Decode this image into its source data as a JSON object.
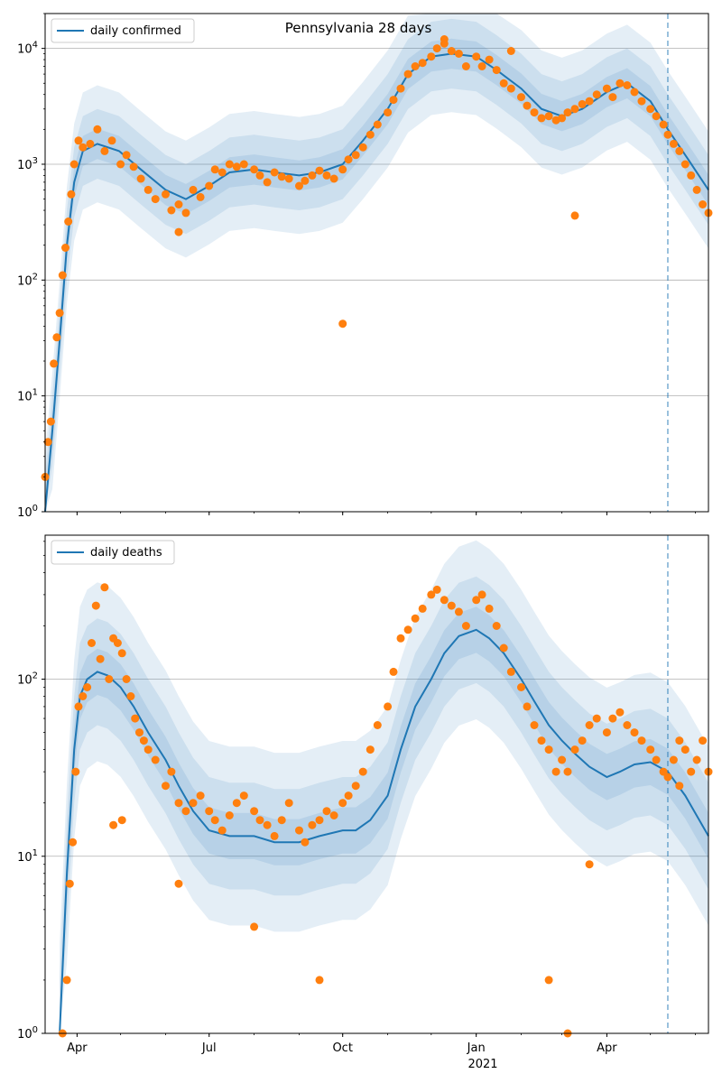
{
  "title": "Pennsylvania 28 days",
  "colors": {
    "model_line": "#1f77b4",
    "observed_points": "#ff7f0e",
    "band": "#1f77b4",
    "forecast_start_line": "#1f77b4",
    "grid": "#b0b0b0"
  },
  "x_axis": {
    "tick_labels": [
      "Apr",
      "Jul",
      "Oct",
      "Jan",
      "Apr"
    ],
    "tick_dates": [
      "2020-04-01",
      "2020-07-01",
      "2020-10-01",
      "2021-01-01",
      "2021-04-01"
    ],
    "year_label": "2021",
    "xlim": [
      "2020-03-10",
      "2021-06-10"
    ],
    "forecast_start": "2021-05-13"
  },
  "chart_data": [
    {
      "type": "scatter",
      "panel": "top",
      "legend": "daily confirmed",
      "legend_position": "upper left",
      "y_scale": "log",
      "ylim": [
        1,
        20000
      ],
      "y_tick_labels": [
        "10^0",
        "10^1",
        "10^2",
        "10^3",
        "10^4"
      ],
      "y_tick_values": [
        1,
        10,
        100,
        1000,
        10000
      ],
      "grid": "y major",
      "model_series": {
        "name": "daily confirmed",
        "x": [
          "2020-03-10",
          "2020-03-15",
          "2020-03-20",
          "2020-03-25",
          "2020-03-30",
          "2020-04-05",
          "2020-04-15",
          "2020-04-30",
          "2020-05-15",
          "2020-06-01",
          "2020-06-15",
          "2020-07-01",
          "2020-07-15",
          "2020-08-01",
          "2020-08-15",
          "2020-09-01",
          "2020-09-15",
          "2020-10-01",
          "2020-10-15",
          "2020-11-01",
          "2020-11-15",
          "2020-12-01",
          "2020-12-15",
          "2021-01-01",
          "2021-01-15",
          "2021-02-01",
          "2021-02-15",
          "2021-03-01",
          "2021-03-15",
          "2021-04-01",
          "2021-04-15",
          "2021-05-01",
          "2021-05-13",
          "2021-05-25",
          "2021-06-10"
        ],
        "y": [
          1,
          5,
          30,
          200,
          700,
          1300,
          1500,
          1300,
          900,
          600,
          500,
          650,
          850,
          900,
          850,
          800,
          850,
          1000,
          1600,
          3000,
          6000,
          8500,
          9000,
          8500,
          6500,
          4500,
          3000,
          2600,
          3000,
          4200,
          5000,
          3500,
          2000,
          1200,
          600
        ]
      },
      "points": {
        "x": [
          "2020-03-10",
          "2020-03-12",
          "2020-03-14",
          "2020-03-16",
          "2020-03-18",
          "2020-03-20",
          "2020-03-22",
          "2020-03-24",
          "2020-03-26",
          "2020-03-28",
          "2020-03-30",
          "2020-04-02",
          "2020-04-05",
          "2020-04-10",
          "2020-04-15",
          "2020-04-20",
          "2020-04-25",
          "2020-05-01",
          "2020-05-05",
          "2020-05-10",
          "2020-05-15",
          "2020-05-20",
          "2020-05-25",
          "2020-06-01",
          "2020-06-05",
          "2020-06-10",
          "2020-06-15",
          "2020-06-20",
          "2020-06-25",
          "2020-07-01",
          "2020-07-05",
          "2020-07-10",
          "2020-07-15",
          "2020-07-20",
          "2020-07-25",
          "2020-08-01",
          "2020-08-05",
          "2020-08-10",
          "2020-08-15",
          "2020-08-20",
          "2020-08-25",
          "2020-09-01",
          "2020-09-05",
          "2020-09-10",
          "2020-09-15",
          "2020-09-20",
          "2020-09-25",
          "2020-10-01",
          "2020-10-05",
          "2020-10-10",
          "2020-10-15",
          "2020-10-20",
          "2020-10-25",
          "2020-11-01",
          "2020-11-05",
          "2020-11-10",
          "2020-11-15",
          "2020-11-20",
          "2020-11-25",
          "2020-12-01",
          "2020-12-05",
          "2020-12-10",
          "2020-12-15",
          "2020-12-20",
          "2020-12-25",
          "2021-01-01",
          "2021-01-05",
          "2021-01-10",
          "2021-01-15",
          "2021-01-20",
          "2021-01-25",
          "2021-02-01",
          "2021-02-05",
          "2021-02-10",
          "2021-02-15",
          "2021-02-20",
          "2021-02-25",
          "2021-03-01",
          "2021-03-05",
          "2021-03-10",
          "2021-03-15",
          "2021-03-20",
          "2021-03-25",
          "2021-04-01",
          "2021-04-05",
          "2021-04-10",
          "2021-04-15",
          "2021-04-20",
          "2021-04-25",
          "2021-05-01",
          "2021-05-05",
          "2021-05-10",
          "2021-05-13",
          "2021-05-17",
          "2021-05-21",
          "2021-05-25",
          "2021-05-29",
          "2021-06-02",
          "2021-06-06",
          "2021-06-10",
          "2020-10-01",
          "2021-03-10",
          "2021-01-25",
          "2020-12-10",
          "2020-06-10"
        ],
        "y": [
          2,
          4,
          6,
          19,
          32,
          52,
          110,
          190,
          320,
          550,
          1000,
          1600,
          1400,
          1500,
          2000,
          1300,
          1600,
          1000,
          1200,
          950,
          750,
          600,
          500,
          550,
          400,
          450,
          380,
          600,
          520,
          650,
          900,
          850,
          1000,
          950,
          1000,
          900,
          800,
          700,
          850,
          780,
          750,
          650,
          720,
          800,
          880,
          800,
          750,
          900,
          1100,
          1200,
          1400,
          1800,
          2200,
          2800,
          3600,
          4500,
          6000,
          7000,
          7500,
          8500,
          10000,
          11000,
          9500,
          9000,
          7000,
          8500,
          7000,
          8000,
          6500,
          5000,
          4500,
          3800,
          3200,
          2800,
          2500,
          2600,
          2400,
          2500,
          2800,
          3000,
          3300,
          3500,
          4000,
          4500,
          3800,
          5000,
          4800,
          4200,
          3500,
          3000,
          2600,
          2200,
          1800,
          1500,
          1300,
          1000,
          800,
          600,
          450,
          380,
          42,
          360,
          9500,
          12000,
          260
        ]
      }
    },
    {
      "type": "scatter",
      "panel": "bottom",
      "legend": "daily deaths",
      "legend_position": "upper left",
      "y_scale": "log",
      "ylim": [
        1,
        650
      ],
      "y_tick_labels": [
        "10^0",
        "10^1",
        "10^2"
      ],
      "y_tick_values": [
        1,
        10,
        100
      ],
      "grid": "y major",
      "model_series": {
        "name": "daily deaths",
        "x": [
          "2020-03-20",
          "2020-03-25",
          "2020-03-30",
          "2020-04-03",
          "2020-04-08",
          "2020-04-15",
          "2020-04-22",
          "2020-05-01",
          "2020-05-10",
          "2020-05-20",
          "2020-06-01",
          "2020-06-10",
          "2020-06-20",
          "2020-07-01",
          "2020-07-15",
          "2020-08-01",
          "2020-08-15",
          "2020-09-01",
          "2020-09-15",
          "2020-10-01",
          "2020-10-10",
          "2020-10-20",
          "2020-11-01",
          "2020-11-10",
          "2020-11-20",
          "2020-12-01",
          "2020-12-10",
          "2020-12-20",
          "2021-01-01",
          "2021-01-10",
          "2021-01-20",
          "2021-02-01",
          "2021-02-10",
          "2021-02-20",
          "2021-03-01",
          "2021-03-10",
          "2021-03-20",
          "2021-04-01",
          "2021-04-10",
          "2021-04-20",
          "2021-05-01",
          "2021-05-13",
          "2021-05-25",
          "2021-06-10"
        ],
        "y": [
          1,
          8,
          40,
          80,
          100,
          110,
          105,
          90,
          70,
          50,
          35,
          25,
          18,
          14,
          13,
          13,
          12,
          12,
          13,
          14,
          14,
          16,
          22,
          40,
          70,
          100,
          140,
          175,
          190,
          170,
          140,
          100,
          75,
          55,
          45,
          38,
          32,
          28,
          30,
          33,
          34,
          30,
          22,
          13
        ]
      },
      "points": {
        "x": [
          "2020-03-22",
          "2020-03-25",
          "2020-03-27",
          "2020-03-29",
          "2020-03-31",
          "2020-04-02",
          "2020-04-05",
          "2020-04-08",
          "2020-04-11",
          "2020-04-14",
          "2020-04-17",
          "2020-04-20",
          "2020-04-23",
          "2020-04-26",
          "2020-04-29",
          "2020-05-02",
          "2020-05-05",
          "2020-05-08",
          "2020-05-11",
          "2020-05-14",
          "2020-05-17",
          "2020-05-20",
          "2020-05-25",
          "2020-06-01",
          "2020-06-05",
          "2020-06-10",
          "2020-06-15",
          "2020-06-20",
          "2020-06-25",
          "2020-07-01",
          "2020-07-05",
          "2020-07-10",
          "2020-07-15",
          "2020-07-20",
          "2020-07-25",
          "2020-08-01",
          "2020-08-05",
          "2020-08-10",
          "2020-08-15",
          "2020-08-20",
          "2020-08-25",
          "2020-09-01",
          "2020-09-05",
          "2020-09-10",
          "2020-09-15",
          "2020-09-20",
          "2020-09-25",
          "2020-10-01",
          "2020-10-05",
          "2020-10-10",
          "2020-10-15",
          "2020-10-20",
          "2020-10-25",
          "2020-11-01",
          "2020-11-05",
          "2020-11-10",
          "2020-11-15",
          "2020-11-20",
          "2020-11-25",
          "2020-12-01",
          "2020-12-05",
          "2020-12-10",
          "2020-12-15",
          "2020-12-20",
          "2020-12-25",
          "2021-01-01",
          "2021-01-05",
          "2021-01-10",
          "2021-01-15",
          "2021-01-20",
          "2021-01-25",
          "2021-02-01",
          "2021-02-05",
          "2021-02-10",
          "2021-02-15",
          "2021-02-20",
          "2021-02-25",
          "2021-03-01",
          "2021-03-05",
          "2021-03-10",
          "2021-03-15",
          "2021-03-20",
          "2021-03-25",
          "2021-04-01",
          "2021-04-05",
          "2021-04-10",
          "2021-04-15",
          "2021-04-20",
          "2021-04-25",
          "2021-05-01",
          "2021-05-05",
          "2021-05-10",
          "2021-05-13",
          "2021-05-17",
          "2021-05-21",
          "2021-05-25",
          "2021-05-29",
          "2021-06-02",
          "2021-06-06",
          "2021-06-10",
          "2020-04-26",
          "2020-05-02",
          "2020-06-10",
          "2020-08-01",
          "2020-09-15",
          "2021-02-20",
          "2021-03-05",
          "2021-03-20",
          "2021-05-21"
        ],
        "y": [
          1,
          2,
          7,
          12,
          30,
          70,
          80,
          90,
          160,
          260,
          130,
          330,
          100,
          170,
          160,
          140,
          100,
          80,
          60,
          50,
          45,
          40,
          35,
          25,
          30,
          20,
          18,
          20,
          22,
          18,
          16,
          14,
          17,
          20,
          22,
          18,
          16,
          15,
          13,
          16,
          20,
          14,
          12,
          15,
          16,
          18,
          17,
          20,
          22,
          25,
          30,
          40,
          55,
          70,
          110,
          170,
          190,
          220,
          250,
          300,
          320,
          280,
          260,
          240,
          200,
          280,
          300,
          250,
          200,
          150,
          110,
          90,
          70,
          55,
          45,
          40,
          30,
          35,
          30,
          40,
          45,
          55,
          60,
          50,
          60,
          65,
          55,
          50,
          45,
          40,
          35,
          30,
          28,
          35,
          25,
          40,
          30,
          35,
          45,
          30,
          15,
          16,
          7,
          4,
          2,
          2,
          1,
          9,
          45
        ]
      }
    }
  ]
}
